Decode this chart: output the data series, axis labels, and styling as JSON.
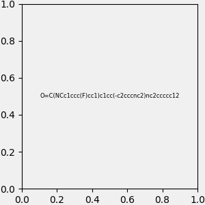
{
  "smiles": "O=C(NCc1ccc(F)cc1)c1cc(-c2cccnc2)nc2ccccc12",
  "image_size": 300,
  "background_color": "#f0f0f0",
  "bond_color": "#000000",
  "atom_colors": {
    "N_quinoline": "#0000ff",
    "N_pyridine": "#0000ff",
    "N_amide": "#008080",
    "O": "#ff0000",
    "F": "#ff00ff"
  }
}
